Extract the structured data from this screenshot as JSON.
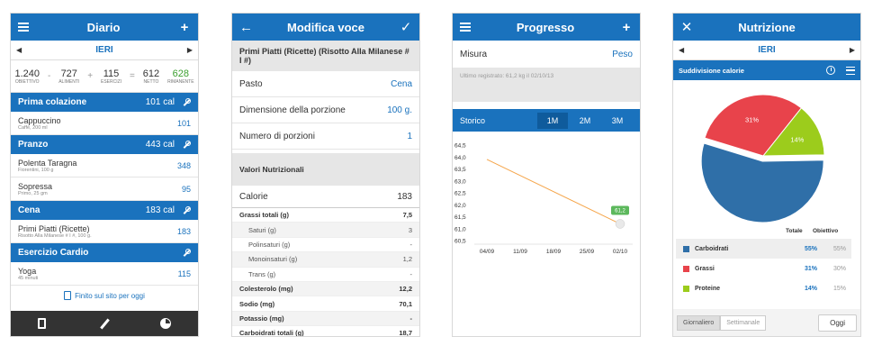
{
  "diario": {
    "title": "Diario",
    "date": "IERI",
    "summary": [
      {
        "num": "1.240",
        "label": "OBIETTIVO"
      },
      {
        "num": "727",
        "label": "ALIMENTI"
      },
      {
        "num": "115",
        "label": "ESERCIZI"
      },
      {
        "num": "612",
        "label": "NETTO"
      },
      {
        "num": "628",
        "label": "RIMANENTE"
      }
    ],
    "sections": [
      {
        "name": "Prima colazione",
        "cal": "101 cal",
        "items": [
          {
            "name": "Cappuccino",
            "sub": "Caffè, 200 ml",
            "val": "101"
          }
        ]
      },
      {
        "name": "Pranzo",
        "cal": "443 cal",
        "items": [
          {
            "name": "Polenta Taragna",
            "sub": "Fiorentini, 100 g",
            "val": "348"
          },
          {
            "name": "Sopressa",
            "sub": "Primo, 25 gm",
            "val": "95"
          }
        ]
      },
      {
        "name": "Cena",
        "cal": "183 cal",
        "items": [
          {
            "name": "Primi Piatti (Ricette)",
            "sub": "Risotto Alla Milanese # I #, 100 g.",
            "val": "183"
          }
        ]
      },
      {
        "name": "Esercizio Cardio",
        "cal": "",
        "items": [
          {
            "name": "Yoga",
            "sub": "45 minuti",
            "val": "115"
          }
        ]
      }
    ],
    "finish_label": "Finito sul sito per oggi"
  },
  "modifica": {
    "title": "Modifica voce",
    "food": "Primi Piatti (Ricette) (Risotto Alla Milanese # I #)",
    "fields": [
      {
        "label": "Pasto",
        "value": "Cena"
      },
      {
        "label": "Dimensione della porzione",
        "value": "100 g."
      },
      {
        "label": "Numero di porzioni",
        "value": "1"
      }
    ],
    "valori_header": "Valori Nutrizionali",
    "calorie_label": "Calorie",
    "calorie_value": "183",
    "nutrients": [
      {
        "label": "Grassi totali (g)",
        "value": "7,5",
        "type": "b"
      },
      {
        "label": "Saturi (g)",
        "value": "3",
        "type": "sub"
      },
      {
        "label": "Polinsaturi (g)",
        "value": "-",
        "type": "sub"
      },
      {
        "label": "Monoinsaturi (g)",
        "value": "1,2",
        "type": "sub"
      },
      {
        "label": "Trans (g)",
        "value": "-",
        "type": "sub"
      },
      {
        "label": "Colesterolo (mg)",
        "value": "12,2",
        "type": "b"
      },
      {
        "label": "Sodio (mg)",
        "value": "70,1",
        "type": "b"
      },
      {
        "label": "Potassio (mg)",
        "value": "-",
        "type": "b"
      },
      {
        "label": "Carboidrati totali (g)",
        "value": "18,7",
        "type": "b"
      }
    ]
  },
  "progresso": {
    "title": "Progresso",
    "misura_label": "Misura",
    "misura_value": "Peso",
    "last_recorded": "Ultimo registrato: 61,2 kg il 02/10/13",
    "storico_label": "Storico",
    "ranges": [
      "1M",
      "2M",
      "3M"
    ],
    "active_range": "1M",
    "chart_data": {
      "type": "line",
      "x": [
        "04/09",
        "11/09",
        "18/09",
        "25/09",
        "02/10"
      ],
      "y_ticks": [
        "64,5",
        "64,0",
        "63,5",
        "63,0",
        "62,5",
        "62,0",
        "61,5",
        "61,0",
        "60,5"
      ],
      "ylim": [
        60.5,
        64.5
      ],
      "series": [
        {
          "points": [
            {
              "x": "04/09",
              "y": 63.9
            },
            {
              "x": "02/10",
              "y": 61.2
            }
          ]
        }
      ],
      "last_label": "61,2",
      "line_color": "#f5a54a"
    }
  },
  "nutrizione": {
    "title": "Nutrizione",
    "date": "IERI",
    "header": "Suddivisione calorie",
    "chart_data": {
      "type": "pie",
      "slices": [
        {
          "name": "Carboidrati",
          "value": 55,
          "label": "55%",
          "color": "#2f6fa8"
        },
        {
          "name": "Grassi",
          "value": 31,
          "label": "31%",
          "color": "#e8434b"
        },
        {
          "name": "Proteine",
          "value": 14,
          "label": "14%",
          "color": "#9ccc1c"
        }
      ]
    },
    "col_totale": "Totale",
    "col_obiettivo": "Obiettivo",
    "rows": [
      {
        "name": "Carboidrati",
        "tot": "55%",
        "obj": "55%",
        "color": "#2f6fa8"
      },
      {
        "name": "Grassi",
        "tot": "31%",
        "obj": "30%",
        "color": "#e8434b"
      },
      {
        "name": "Proteine",
        "tot": "14%",
        "obj": "15%",
        "color": "#9ccc1c"
      }
    ],
    "tabs": [
      "Giornaliero",
      "Settimanale"
    ],
    "today": "Oggi"
  }
}
